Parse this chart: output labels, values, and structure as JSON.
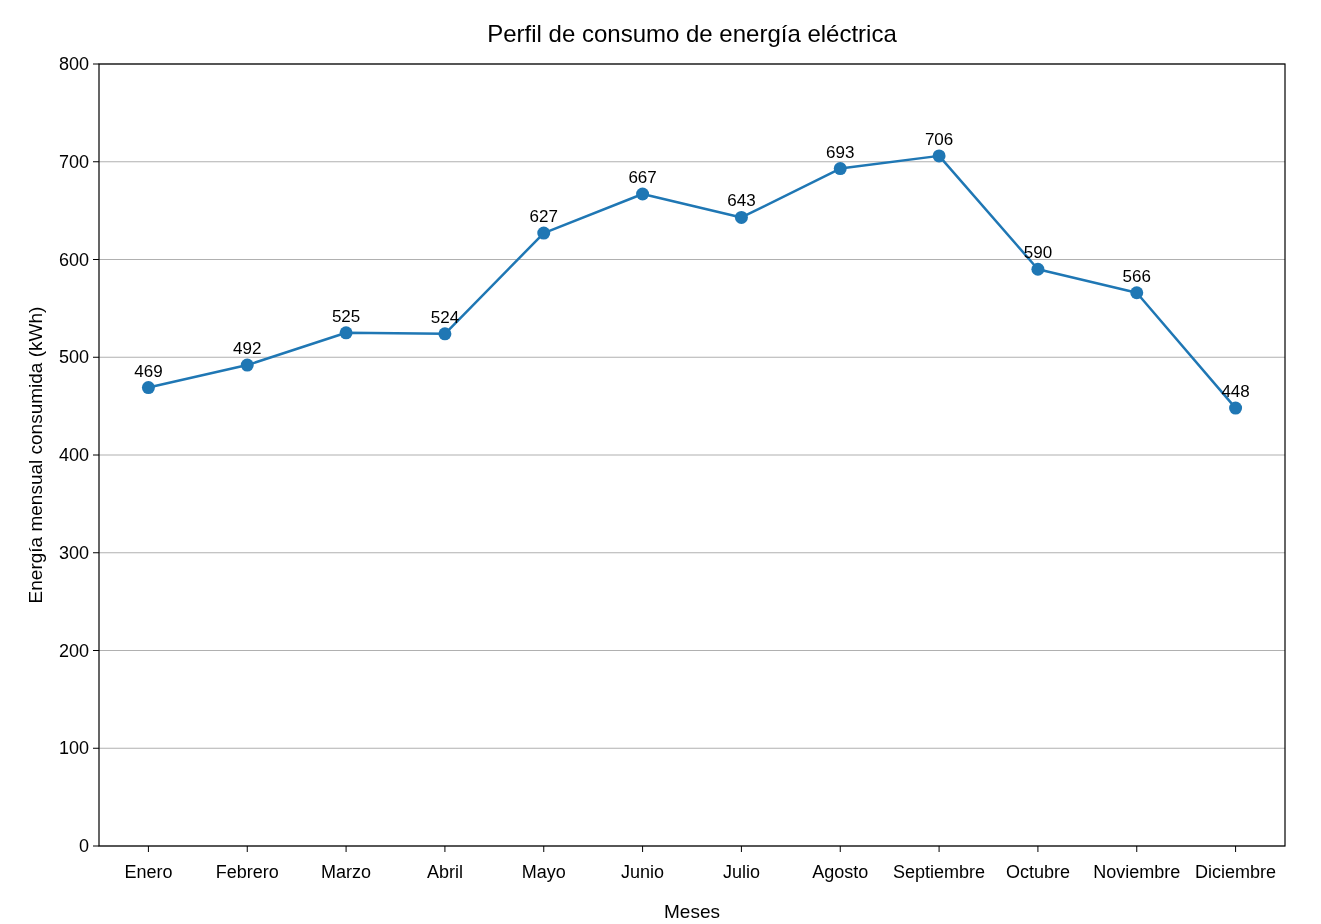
{
  "chart_data": {
    "type": "line",
    "title": "Perfil de consumo de energía eléctrica",
    "xlabel": "Meses",
    "ylabel": "Energía mensual consumida (kWh)",
    "categories": [
      "Enero",
      "Febrero",
      "Marzo",
      "Abril",
      "Mayo",
      "Junio",
      "Julio",
      "Agosto",
      "Septiembre",
      "Octubre",
      "Noviembre",
      "Diciembre"
    ],
    "series": [
      {
        "color": "#1f77b4",
        "values": [
          469,
          492,
          525,
          524,
          627,
          667,
          643,
          693,
          706,
          590,
          566,
          448
        ]
      }
    ],
    "ylim": [
      0,
      800
    ],
    "yticks": [
      0,
      100,
      200,
      300,
      400,
      500,
      600,
      700,
      800
    ],
    "grid": "y",
    "marker": "circle",
    "line_style": "solid",
    "data_labels": true
  }
}
